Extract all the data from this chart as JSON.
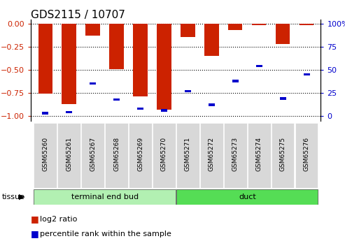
{
  "title": "GDS2115 / 10707",
  "samples": [
    "GSM65260",
    "GSM65261",
    "GSM65267",
    "GSM65268",
    "GSM65269",
    "GSM65270",
    "GSM65271",
    "GSM65272",
    "GSM65273",
    "GSM65274",
    "GSM65275",
    "GSM65276"
  ],
  "log2_ratio": [
    -0.76,
    -0.87,
    -0.13,
    -0.49,
    -0.79,
    -0.93,
    -0.14,
    -0.35,
    -0.07,
    -0.01,
    -0.22,
    -0.01
  ],
  "percentile_rank": [
    3,
    4,
    35,
    18,
    8,
    6,
    27,
    12,
    38,
    54,
    19,
    45
  ],
  "tissue_groups": [
    {
      "label": "terminal end bud",
      "start": 0,
      "end": 6,
      "color": "#b2f0b2"
    },
    {
      "label": "duct",
      "start": 6,
      "end": 12,
      "color": "#55dd55"
    }
  ],
  "bar_color": "#cc2200",
  "marker_color": "#0000cc",
  "left_axis_color": "#cc2200",
  "right_axis_color": "#0000cc",
  "ylim_left": [
    -1.05,
    0.05
  ],
  "ylim_right": [
    -5.25,
    105
  ],
  "y_ticks_left": [
    0,
    -0.25,
    -0.5,
    -0.75,
    -1.0
  ],
  "y_ticks_right": [
    0,
    25,
    50,
    75,
    100
  ],
  "plot_bg": "#ffffff",
  "label_box_bg": "#d8d8d8",
  "legend_log2": "log2 ratio",
  "legend_pct": "percentile rank within the sample",
  "tissue_label": "tissue"
}
